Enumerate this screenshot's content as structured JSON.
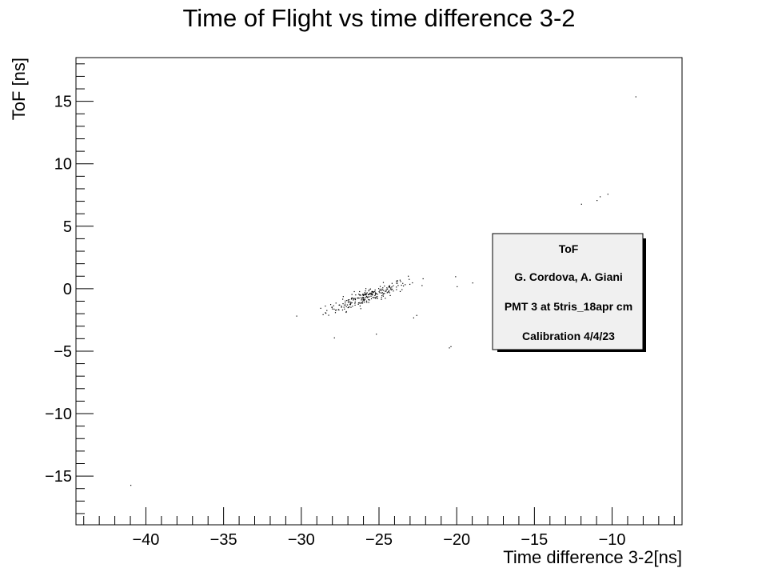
{
  "chart_data": {
    "type": "scatter",
    "title": "Time of Flight vs time difference 3-2",
    "xlabel": "Time difference 3-2[ns]",
    "ylabel": "ToF [ns]",
    "xlim": [
      -44.5,
      -5.5
    ],
    "ylim": [
      -18.9,
      18.5
    ],
    "x_ticks": [
      -40,
      -35,
      -30,
      -25,
      -20,
      -15,
      -10
    ],
    "x_tick_labels": [
      "−40",
      "−35",
      "−30",
      "−25",
      "−20",
      "−15",
      "−10"
    ],
    "y_ticks": [
      -15,
      -10,
      -5,
      0,
      5,
      10,
      15
    ],
    "y_tick_labels": [
      "−15",
      "−10",
      "−5",
      "0",
      "5",
      "10",
      "15"
    ],
    "grid": false,
    "legend_placement": "center-right",
    "marker_color": "#000000",
    "cluster": {
      "center": [
        -25.8,
        -0.6
      ],
      "count": 240,
      "slope": 0.42,
      "spread_along": 1.3,
      "spread_across": 0.3
    },
    "points": [
      [
        -41.0,
        -15.7
      ],
      [
        -27.9,
        -3.9
      ],
      [
        -25.2,
        -3.6
      ],
      [
        -23.8,
        0.3
      ],
      [
        -22.8,
        -2.3
      ],
      [
        -22.6,
        -2.1
      ],
      [
        -20.5,
        -4.7
      ],
      [
        -20.4,
        -4.6
      ],
      [
        -20.1,
        1.0
      ],
      [
        -20.0,
        0.2
      ],
      [
        -19.0,
        0.5
      ],
      [
        -12.0,
        6.8
      ],
      [
        -11.0,
        7.1
      ],
      [
        -10.8,
        7.4
      ],
      [
        -10.3,
        7.6
      ],
      [
        -8.5,
        15.4
      ]
    ]
  },
  "stats_box": {
    "lines": [
      "ToF",
      "G. Cordova, A. Giani",
      "PMT 3 at 5tris_18apr cm",
      "Calibration 4/4/23"
    ]
  }
}
